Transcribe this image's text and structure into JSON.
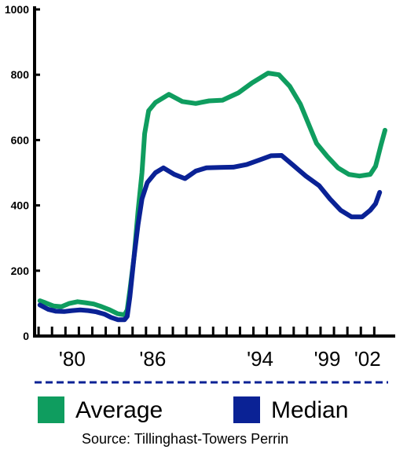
{
  "chart_data": {
    "type": "line",
    "title": "",
    "xlabel": "",
    "ylabel": "",
    "ylim": [
      0,
      1000
    ],
    "y_ticks": [
      0,
      200,
      400,
      600,
      800,
      1000
    ],
    "x_range": [
      1977.2,
      2003.3
    ],
    "x_ticks": [
      {
        "year": 1980,
        "label": "'80"
      },
      {
        "year": 1986,
        "label": "'86"
      },
      {
        "year": 1994,
        "label": "'94"
      },
      {
        "year": 1999,
        "label": "'99"
      },
      {
        "year": 2002,
        "label": "'02"
      }
    ],
    "x_minor_ticks": [
      1977.5,
      1978.5,
      1979.5,
      1980.5,
      1981.5,
      1982.5,
      1983.5,
      1984.5,
      1985.5,
      1986.5,
      1987.5,
      1988.5,
      1989.5,
      1990.5,
      1991.5,
      1992.5,
      1993.5,
      1994.5,
      1995.5,
      1996.5,
      1997.5,
      1998.5,
      1999.5,
      2000.5,
      2001.5,
      2002.5
    ],
    "grid": false,
    "legend_position": "bottom",
    "series": [
      {
        "name": "Average",
        "color": "#0f9d5f",
        "points": [
          [
            1977.6,
            108
          ],
          [
            1978.0,
            102
          ],
          [
            1978.6,
            92
          ],
          [
            1979.2,
            90
          ],
          [
            1979.8,
            100
          ],
          [
            1980.4,
            105
          ],
          [
            1981.0,
            102
          ],
          [
            1981.6,
            98
          ],
          [
            1982.2,
            90
          ],
          [
            1982.8,
            80
          ],
          [
            1983.4,
            68
          ],
          [
            1983.9,
            65
          ],
          [
            1984.1,
            80
          ],
          [
            1984.3,
            140
          ],
          [
            1984.6,
            240
          ],
          [
            1984.9,
            380
          ],
          [
            1985.2,
            500
          ],
          [
            1985.4,
            620
          ],
          [
            1985.7,
            690
          ],
          [
            1986.2,
            715
          ],
          [
            1987.2,
            740
          ],
          [
            1988.2,
            718
          ],
          [
            1989.2,
            712
          ],
          [
            1990.2,
            720
          ],
          [
            1991.2,
            722
          ],
          [
            1992.4,
            745
          ],
          [
            1993.4,
            775
          ],
          [
            1994.6,
            805
          ],
          [
            1995.4,
            800
          ],
          [
            1996.2,
            765
          ],
          [
            1997.0,
            710
          ],
          [
            1997.6,
            650
          ],
          [
            1998.2,
            590
          ],
          [
            1999.0,
            550
          ],
          [
            1999.8,
            515
          ],
          [
            2000.6,
            495
          ],
          [
            2001.4,
            490
          ],
          [
            2002.2,
            495
          ],
          [
            2002.6,
            520
          ],
          [
            2003.0,
            585
          ],
          [
            2003.3,
            630
          ]
        ]
      },
      {
        "name": "Median",
        "color": "#0a2295",
        "points": [
          [
            1977.6,
            95
          ],
          [
            1978.2,
            82
          ],
          [
            1978.8,
            76
          ],
          [
            1979.4,
            75
          ],
          [
            1980.0,
            78
          ],
          [
            1980.6,
            80
          ],
          [
            1981.2,
            78
          ],
          [
            1981.8,
            74
          ],
          [
            1982.4,
            67
          ],
          [
            1982.9,
            57
          ],
          [
            1983.4,
            50
          ],
          [
            1983.9,
            50
          ],
          [
            1984.1,
            60
          ],
          [
            1984.3,
            120
          ],
          [
            1984.6,
            240
          ],
          [
            1984.9,
            340
          ],
          [
            1985.2,
            420
          ],
          [
            1985.6,
            470
          ],
          [
            1986.2,
            500
          ],
          [
            1986.8,
            515
          ],
          [
            1987.6,
            495
          ],
          [
            1988.4,
            482
          ],
          [
            1989.2,
            505
          ],
          [
            1990.0,
            515
          ],
          [
            1991.0,
            516
          ],
          [
            1992.0,
            517
          ],
          [
            1993.0,
            525
          ],
          [
            1994.0,
            540
          ],
          [
            1994.8,
            552
          ],
          [
            1995.6,
            553
          ],
          [
            1996.4,
            525
          ],
          [
            1997.4,
            490
          ],
          [
            1998.4,
            460
          ],
          [
            1999.2,
            420
          ],
          [
            2000.0,
            385
          ],
          [
            2000.8,
            365
          ],
          [
            2001.6,
            365
          ],
          [
            2002.2,
            385
          ],
          [
            2002.6,
            405
          ],
          [
            2002.9,
            440
          ]
        ]
      }
    ],
    "source": "Source: Tillinghast-Towers Perrin"
  }
}
